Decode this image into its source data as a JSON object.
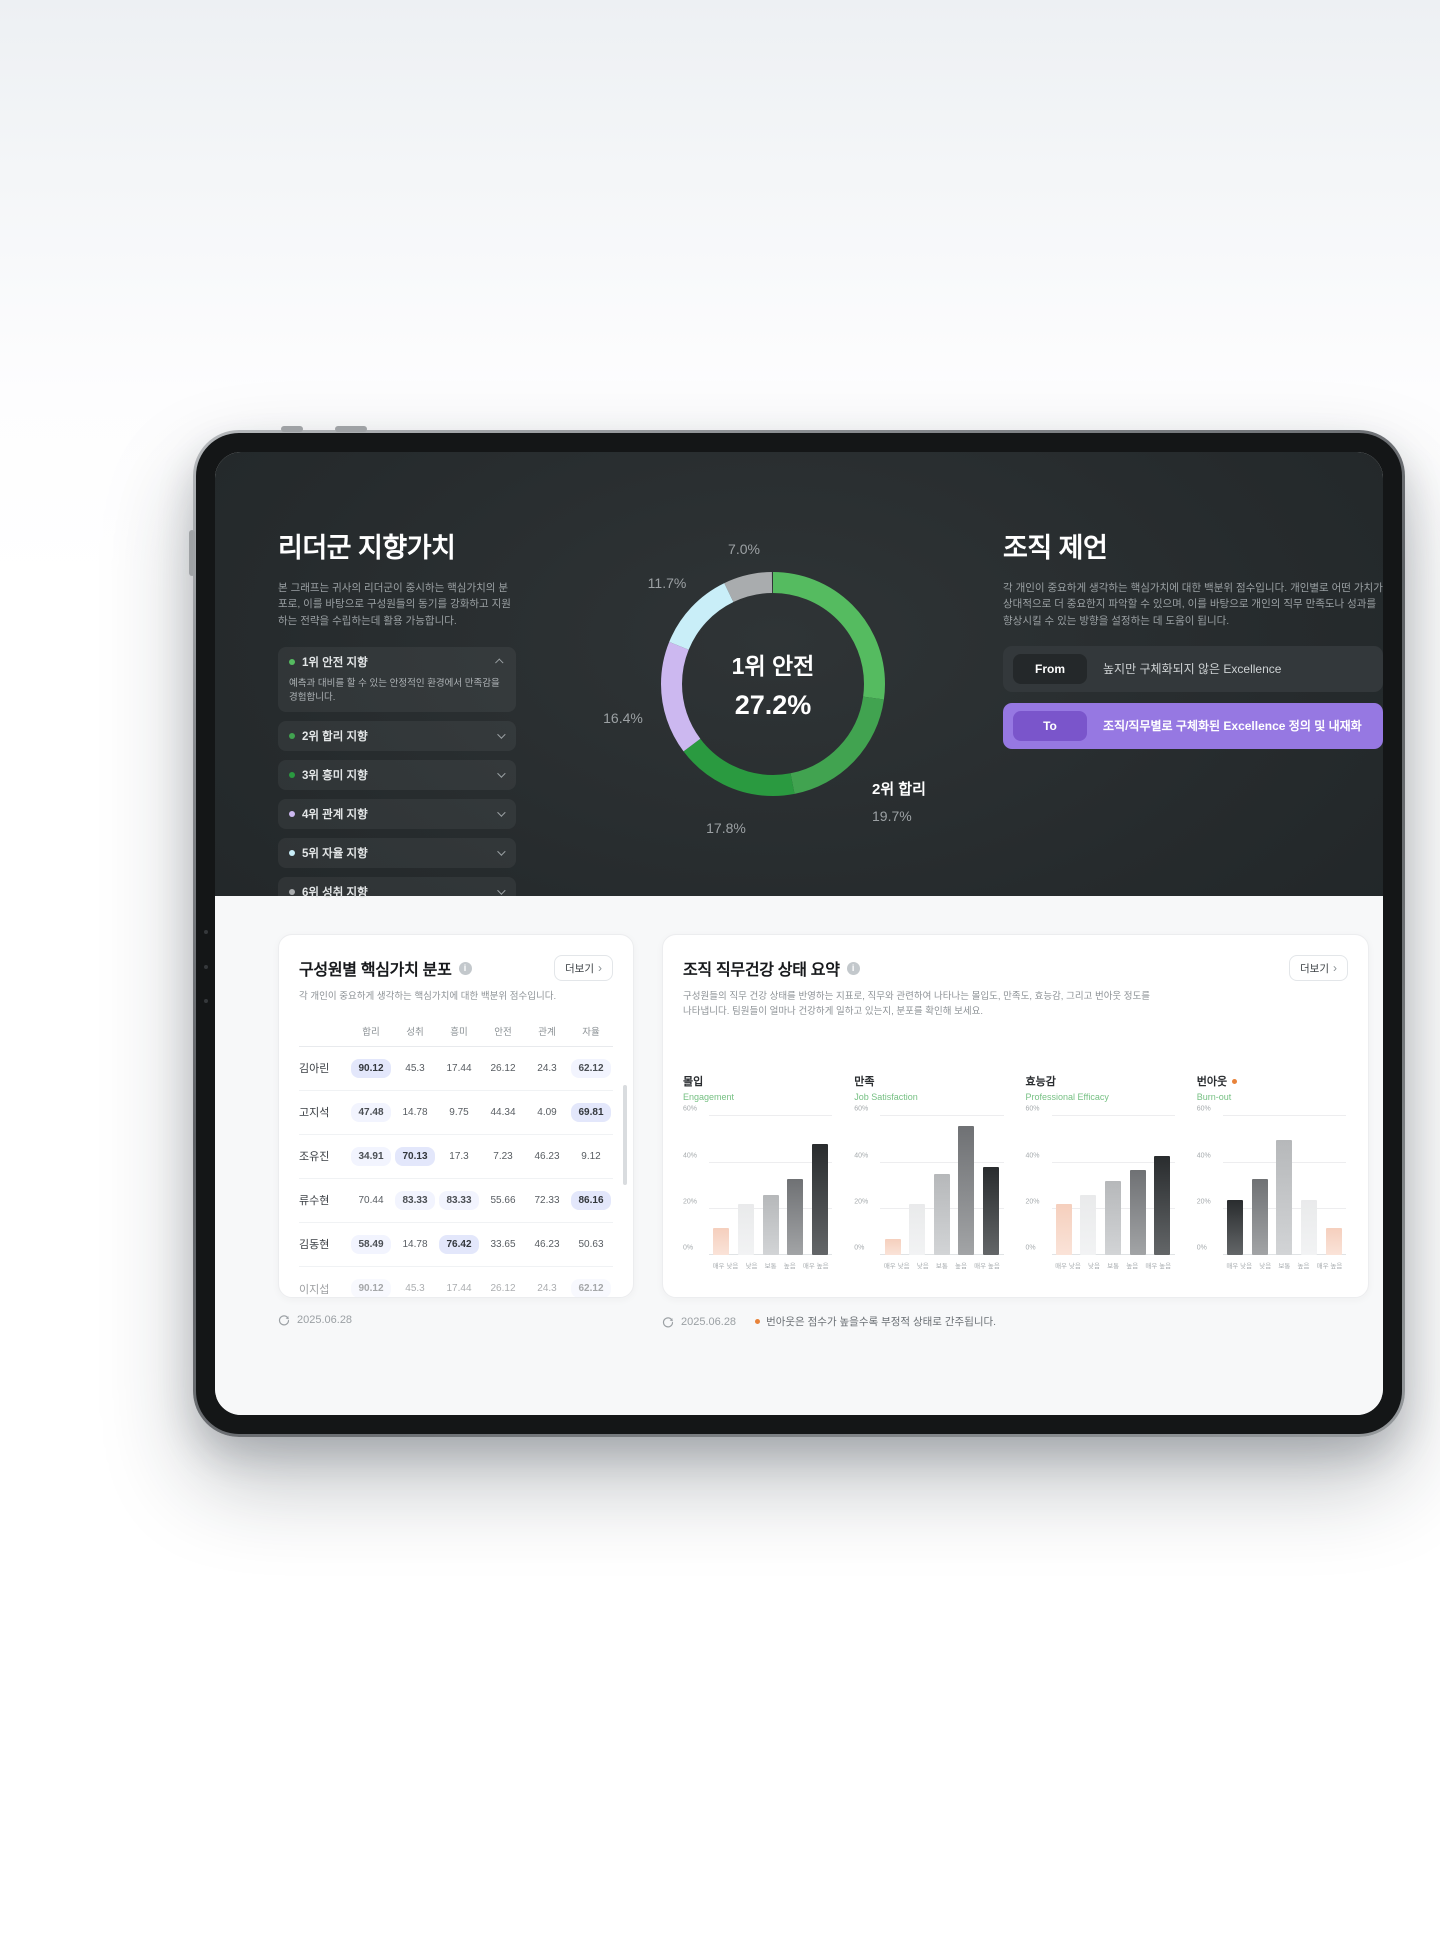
{
  "dark_panel": {
    "leader_values": {
      "title": "리더군 지향가치",
      "description": "본 그래프는 귀사의 리더군이 중시하는 핵심가치의 분포로, 이를 바탕으로 구성원들의 동기를 강화하고 지원하는 전략을 수립하는데 활용 가능합니다.",
      "items": [
        {
          "label": "1위 안전 지향",
          "color": "#55bb60",
          "expanded": true,
          "description": "예측과 대비를 할 수 있는 안정적인 환경에서 만족감을 경험합니다."
        },
        {
          "label": "2위 합리 지향",
          "color": "#41a350",
          "expanded": false
        },
        {
          "label": "3위 흥미 지향",
          "color": "#2a9a40",
          "expanded": false
        },
        {
          "label": "4위 관계 지향",
          "color": "#ccb8f0",
          "expanded": false
        },
        {
          "label": "5위 자율 지향",
          "color": "#c9eef8",
          "expanded": false
        },
        {
          "label": "6위 성취 지향",
          "color": "#a9acae",
          "expanded": false
        }
      ]
    },
    "donut": {
      "center_title": "1위 안전",
      "center_value": "27.2%",
      "segments": [
        {
          "label": "안전",
          "value": 27.2,
          "color": "#55bb60"
        },
        {
          "label": "합리",
          "value": 19.7,
          "color": "#41a350"
        },
        {
          "label": "흥미",
          "value": 17.8,
          "color": "#2a9a40"
        },
        {
          "label": "관계",
          "value": 16.4,
          "color": "#ccb8f0"
        },
        {
          "label": "자율",
          "value": 11.7,
          "color": "#c9eef8"
        },
        {
          "label": "성취",
          "value": 7.0,
          "color": "#a9acae"
        }
      ],
      "floating_labels": [
        "7.0%",
        "11.7%",
        "16.4%",
        "17.8%"
      ],
      "callout": {
        "title": "2위 합리",
        "value": "19.7%"
      }
    },
    "org_suggestion": {
      "title": "조직 제언",
      "description": "각 개인이 중요하게 생각하는 핵심가치에 대한 백분위 점수입니다. 개인별로 어떤 가치가 상대적으로 더 중요한지 파악할 수 있으며, 이를 바탕으로 개인의 직무 만족도나 성과를 향상시킬 수 있는 방향을 설정하는 데 도움이 됩니다.",
      "from": {
        "badge": "From",
        "text": "높지만 구체화되지 않은 Excellence"
      },
      "to": {
        "badge": "To",
        "text": "조직/직무별로 구체화된 Excellence 정의 및 내재화",
        "accent": "#9678e2",
        "badge_accent": "#7a55cb"
      }
    }
  },
  "light_panel": {
    "members_card": {
      "title": "구성원별 핵심가치 분포",
      "more_label": "더보기",
      "more_arrow": "›",
      "subtitle": "각 개인이 중요하게 생각하는 핵심가치에 대한 백분위 점수입니다.",
      "columns": [
        "합리",
        "성취",
        "흥미",
        "안전",
        "관계",
        "자율"
      ],
      "rows": [
        {
          "name": "김아린",
          "values": [
            "90.12",
            "45.3",
            "17.44",
            "26.12",
            "24.3",
            "62.12"
          ],
          "pills": [
            "hi",
            "",
            "",
            "",
            "",
            "lo"
          ],
          "faded": false
        },
        {
          "name": "고지석",
          "values": [
            "47.48",
            "14.78",
            "9.75",
            "44.34",
            "4.09",
            "69.81"
          ],
          "pills": [
            "lo",
            "",
            "",
            "",
            "",
            "hi"
          ],
          "faded": false
        },
        {
          "name": "조유진",
          "values": [
            "34.91",
            "70.13",
            "17.3",
            "7.23",
            "46.23",
            "9.12"
          ],
          "pills": [
            "lo",
            "hi",
            "",
            "",
            "",
            ""
          ],
          "faded": false
        },
        {
          "name": "류수현",
          "values": [
            "70.44",
            "83.33",
            "83.33",
            "55.66",
            "72.33",
            "86.16"
          ],
          "pills": [
            "",
            "lo",
            "lo",
            "",
            "",
            "hi"
          ],
          "faded": false
        },
        {
          "name": "김동현",
          "values": [
            "58.49",
            "14.78",
            "76.42",
            "33.65",
            "46.23",
            "50.63"
          ],
          "pills": [
            "lo",
            "",
            "hi",
            "",
            "",
            ""
          ],
          "faded": false
        },
        {
          "name": "이지섭",
          "values": [
            "90.12",
            "45.3",
            "17.44",
            "26.12",
            "24.3",
            "62.12"
          ],
          "pills": [
            "lo",
            "",
            "",
            "",
            "",
            "lo"
          ],
          "faded": true
        }
      ],
      "footer_date": "2025.06.28"
    },
    "health_card": {
      "title": "조직 직무건강 상태 요약",
      "more_label": "더보기",
      "more_arrow": "›",
      "subtitle": "구성원들의 직무 건강 상태를 반영하는 지표로, 직무와 관련하여 나타나는 몰입도, 만족도, 효능감, 그리고 번아웃 정도를 나타냅니다. 팀원들이 얼마나 건강하게 일하고 있는지, 분포를 확인해 보세요.",
      "footer_date": "2025.06.28",
      "footer_note": "번아웃은 점수가 높을수록 부정적 상태로 간주됩니다."
    }
  },
  "chart_data": [
    {
      "type": "bar",
      "title": "몰입",
      "subtitle": "Engagement",
      "negative": false,
      "categories": [
        "매우 낮음",
        "낮음",
        "보통",
        "높음",
        "매우 높음"
      ],
      "values": [
        12,
        22,
        26,
        33,
        48
      ],
      "shades": [
        1,
        2,
        3,
        4,
        5
      ],
      "ylim": [
        0,
        60
      ],
      "yticks": [
        0,
        20,
        40,
        60
      ],
      "ytick_suffix": "%",
      "grid": true,
      "legend": "none"
    },
    {
      "type": "bar",
      "title": "만족",
      "subtitle": "Job Satisfaction",
      "negative": false,
      "categories": [
        "매우 낮음",
        "낮음",
        "보통",
        "높음",
        "매우 높음"
      ],
      "values": [
        7,
        22,
        35,
        56,
        38
      ],
      "shades": [
        1,
        2,
        3,
        4,
        5
      ],
      "ylim": [
        0,
        60
      ],
      "yticks": [
        0,
        20,
        40,
        60
      ],
      "ytick_suffix": "%",
      "grid": true,
      "legend": "none"
    },
    {
      "type": "bar",
      "title": "효능감",
      "subtitle": "Professional Efficacy",
      "negative": false,
      "categories": [
        "매우 낮음",
        "낮음",
        "보통",
        "높음",
        "매우 높음"
      ],
      "values": [
        22,
        26,
        32,
        37,
        43
      ],
      "shades": [
        1,
        2,
        3,
        4,
        5
      ],
      "ylim": [
        0,
        60
      ],
      "yticks": [
        0,
        20,
        40,
        60
      ],
      "ytick_suffix": "%",
      "grid": true,
      "legend": "none"
    },
    {
      "type": "bar",
      "title": "번아웃",
      "subtitle": "Burn-out",
      "negative": true,
      "categories": [
        "매우 낮음",
        "낮음",
        "보통",
        "높음",
        "매우 높음"
      ],
      "values": [
        24,
        33,
        50,
        24,
        12
      ],
      "shades": [
        5,
        4,
        3,
        2,
        1
      ],
      "ylim": [
        0,
        60
      ],
      "yticks": [
        0,
        20,
        40,
        60
      ],
      "ytick_suffix": "%",
      "grid": true,
      "legend": "none"
    }
  ]
}
